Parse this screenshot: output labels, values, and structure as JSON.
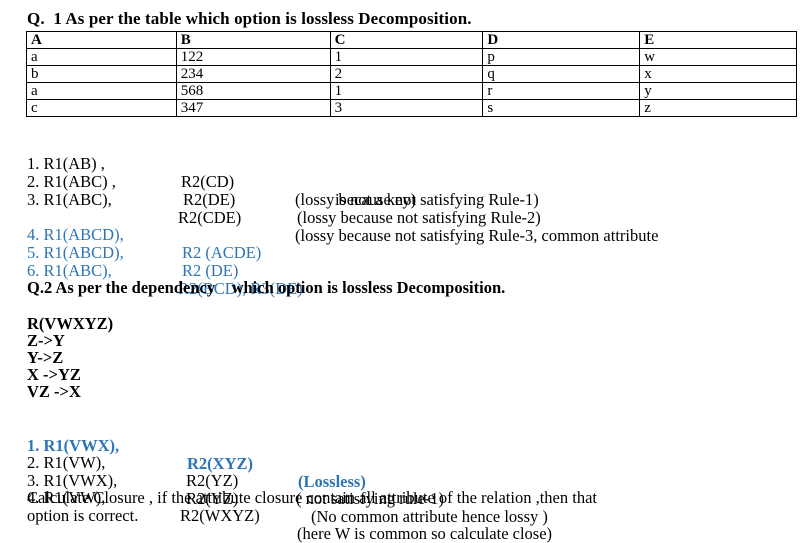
{
  "q1": {
    "title": "Q.  1 As per the table which option is lossless Decomposition.",
    "table": {
      "headers": [
        "A",
        "B",
        "C",
        "D",
        "E"
      ],
      "rows": [
        [
          "a",
          "122",
          "1",
          "p",
          "w"
        ],
        [
          "b",
          "234",
          "2",
          "q",
          "x"
        ],
        [
          "a",
          "568",
          "1",
          "r",
          "y"
        ],
        [
          "c",
          "347",
          "3",
          "s",
          "z"
        ]
      ]
    },
    "options": [
      {
        "num": "1. R1(AB) ,",
        "r2": "R2(CD)",
        "note": "(lossy because not satisfying Rule-1)"
      },
      {
        "num": "2. R1(ABC) ,",
        "r2": "R2(DE)",
        "note": "(lossy because not satisfying Rule-2)"
      },
      {
        "num": "3. R1(ABC),",
        "r2": "R2(CDE)",
        "note": "(lossy because not satisfying Rule-3, common attribute"
      },
      {
        "num": "4. R1(ABCD),",
        "r2": "R2 (ACDE)",
        "note": ""
      },
      {
        "num": "5. R1(ABCD),",
        "r2": "R2 (DE)",
        "note": ""
      },
      {
        "num": "6. R1(ABC),",
        "r2": "R2(BCD), R3(DE)",
        "note": ""
      }
    ],
    "option3_cont": "is not a key)"
  },
  "q2": {
    "title": "Q.2 As per the dependency    which option is lossless Decomposition.",
    "relation": "R(VWXYZ)",
    "fds": [
      "Z->Y",
      "Y->Z",
      "X ->YZ",
      "VZ ->X"
    ],
    "options": [
      {
        "num": "1. R1(VWX),",
        "r2": "R2(XYZ)",
        "note": "(Lossless)"
      },
      {
        "num": "2. R1(VW),",
        "r2": "R2(YZ)",
        "note": "( not satisfying rule-1)"
      },
      {
        "num": "3. R1(VWX),",
        "r2": "R2(YZ)",
        "note": "(No common attribute hence lossy )"
      },
      {
        "num": "4. R1(VW),",
        "r2": "R2(WXYZ)",
        "note": "(here W is common so calculate close)"
      }
    ],
    "closure_line1": "Calculate Closure , if the attribute closure contain all attribute of the relation ,then that",
    "closure_line2": "option is correct."
  }
}
